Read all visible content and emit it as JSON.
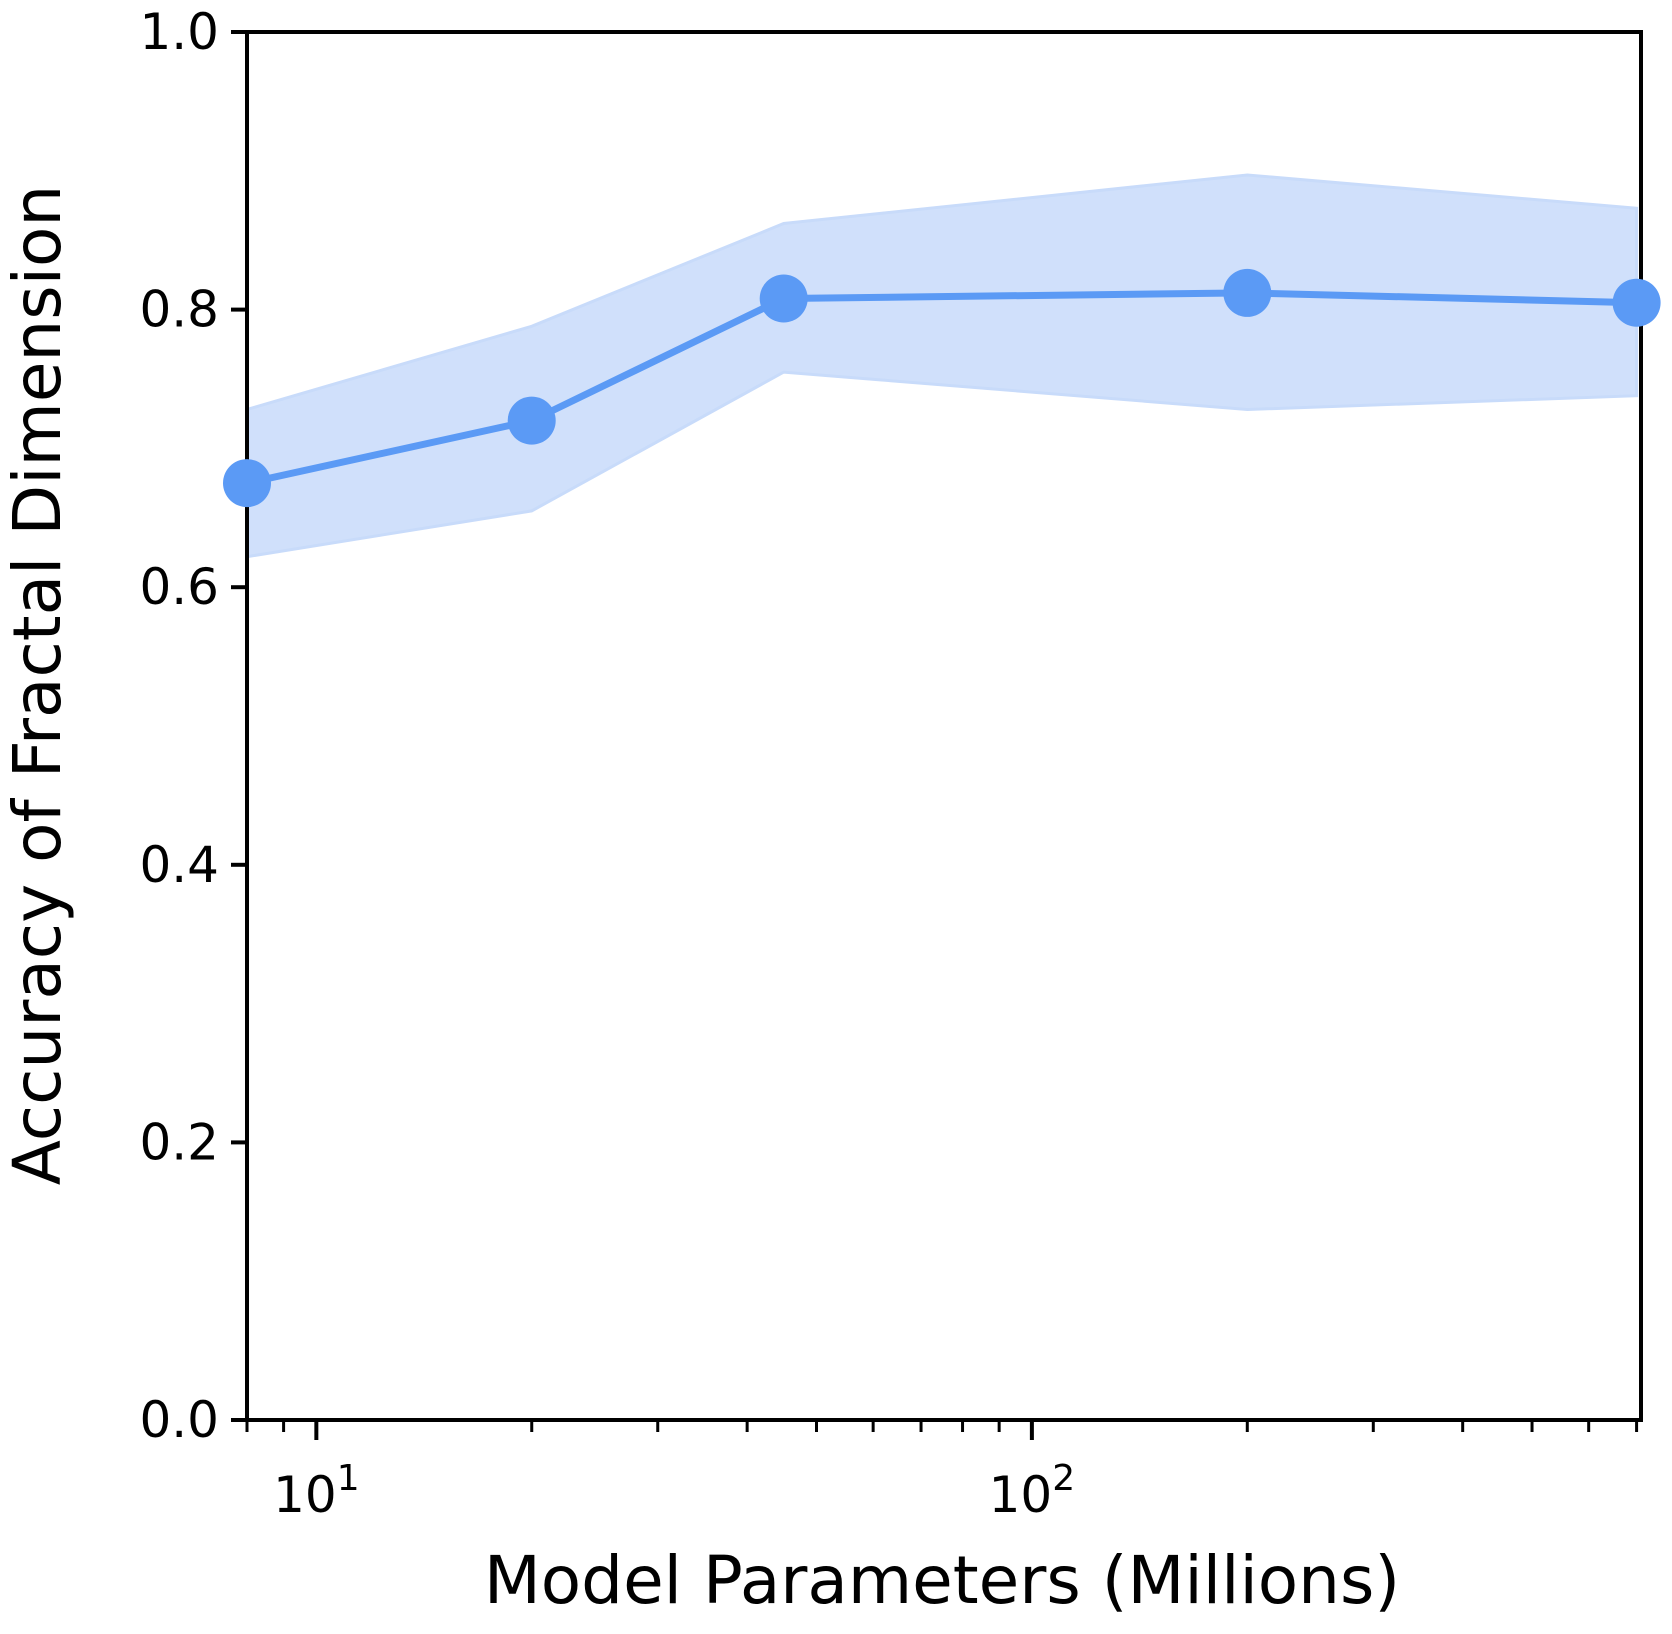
{
  "chart_data": {
    "type": "line",
    "title": "",
    "xlabel": "Model Parameters (Millions)",
    "ylabel": "Accuracy of Fractal Dimension",
    "xscale": "log",
    "xlim": [
      8,
      710
    ],
    "ylim": [
      0.0,
      1.0
    ],
    "yticks": [
      {
        "value": 0.0,
        "label": "0.0"
      },
      {
        "value": 0.2,
        "label": "0.2"
      },
      {
        "value": 0.4,
        "label": "0.4"
      },
      {
        "value": 0.6,
        "label": "0.6"
      },
      {
        "value": 0.8,
        "label": "0.8"
      },
      {
        "value": 1.0,
        "label": "1.0"
      }
    ],
    "xticks_major": [
      {
        "value": 10,
        "base": "10",
        "exp": "1"
      },
      {
        "value": 100,
        "base": "10",
        "exp": "2"
      }
    ],
    "grid": false,
    "legend": "none",
    "series": [
      {
        "color": "#5b9af5",
        "band_color": "#c8dbfa",
        "x": [
          8,
          20,
          45,
          200,
          700
        ],
        "y": [
          0.675,
          0.72,
          0.808,
          0.812,
          0.805
        ],
        "lower": [
          0.622,
          0.655,
          0.755,
          0.728,
          0.738
        ],
        "upper": [
          0.728,
          0.788,
          0.862,
          0.897,
          0.873
        ]
      }
    ]
  }
}
